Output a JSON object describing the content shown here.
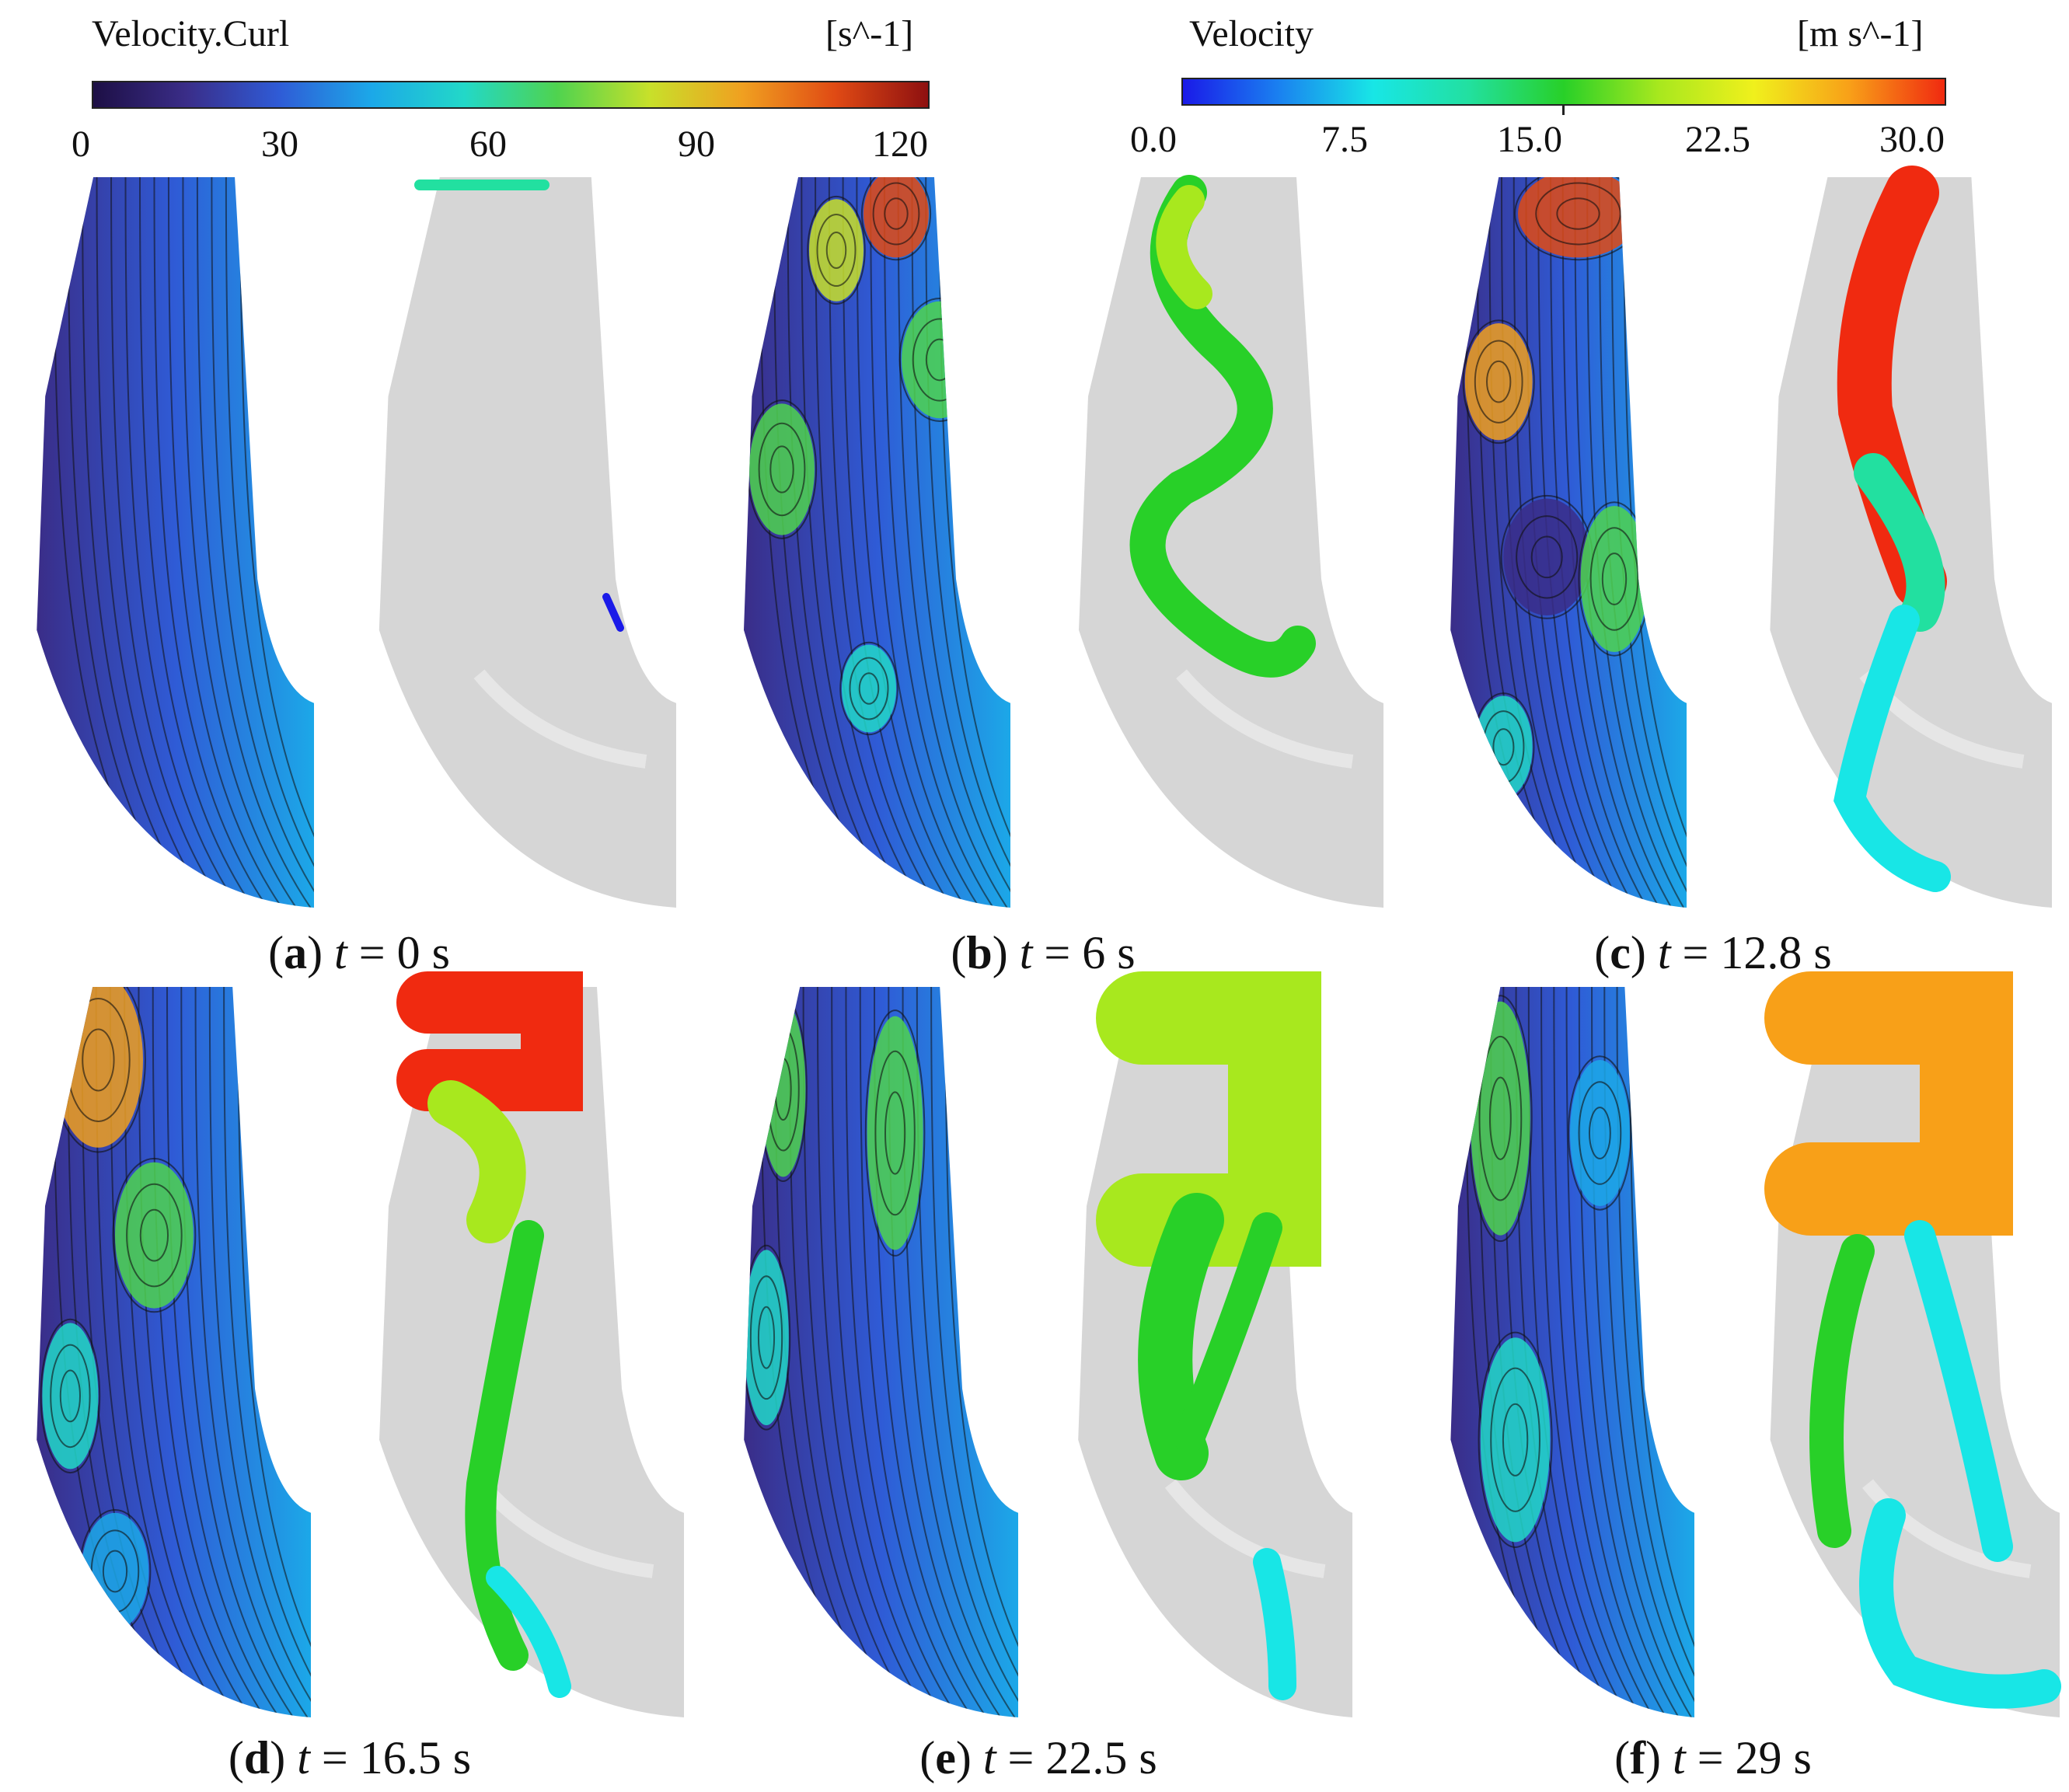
{
  "colorbars": {
    "curl": {
      "title": "Velocity.Curl",
      "unit": "[s^-1]",
      "ticks": [
        "0",
        "30",
        "60",
        "90",
        "120"
      ],
      "colors": [
        "#1d0f45",
        "#3a2d88",
        "#2f5bd6",
        "#1ca8e8",
        "#22d8c8",
        "#4fd34f",
        "#c8e02a",
        "#f0a020",
        "#e04a14",
        "#8e1010"
      ]
    },
    "velocity": {
      "title": "Velocity",
      "unit": "[m s^-1]",
      "ticks": [
        "0.0",
        "7.5",
        "15.0",
        "22.5",
        "30.0"
      ],
      "colors": [
        "#1a1ae8",
        "#1a80f0",
        "#18e6e6",
        "#22e0a0",
        "#28d028",
        "#a8e81e",
        "#f0f01c",
        "#f8a018",
        "#f02a10"
      ]
    }
  },
  "panels": [
    {
      "letter": "a",
      "var": "t",
      "time": "0 s"
    },
    {
      "letter": "b",
      "var": "t",
      "time": "6 s"
    },
    {
      "letter": "c",
      "var": "t",
      "time": "12.8 s"
    },
    {
      "letter": "d",
      "var": "t",
      "time": "16.5 s"
    },
    {
      "letter": "e",
      "var": "t",
      "time": "22.5 s"
    },
    {
      "letter": "f",
      "var": "t",
      "time": "29 s"
    }
  ]
}
